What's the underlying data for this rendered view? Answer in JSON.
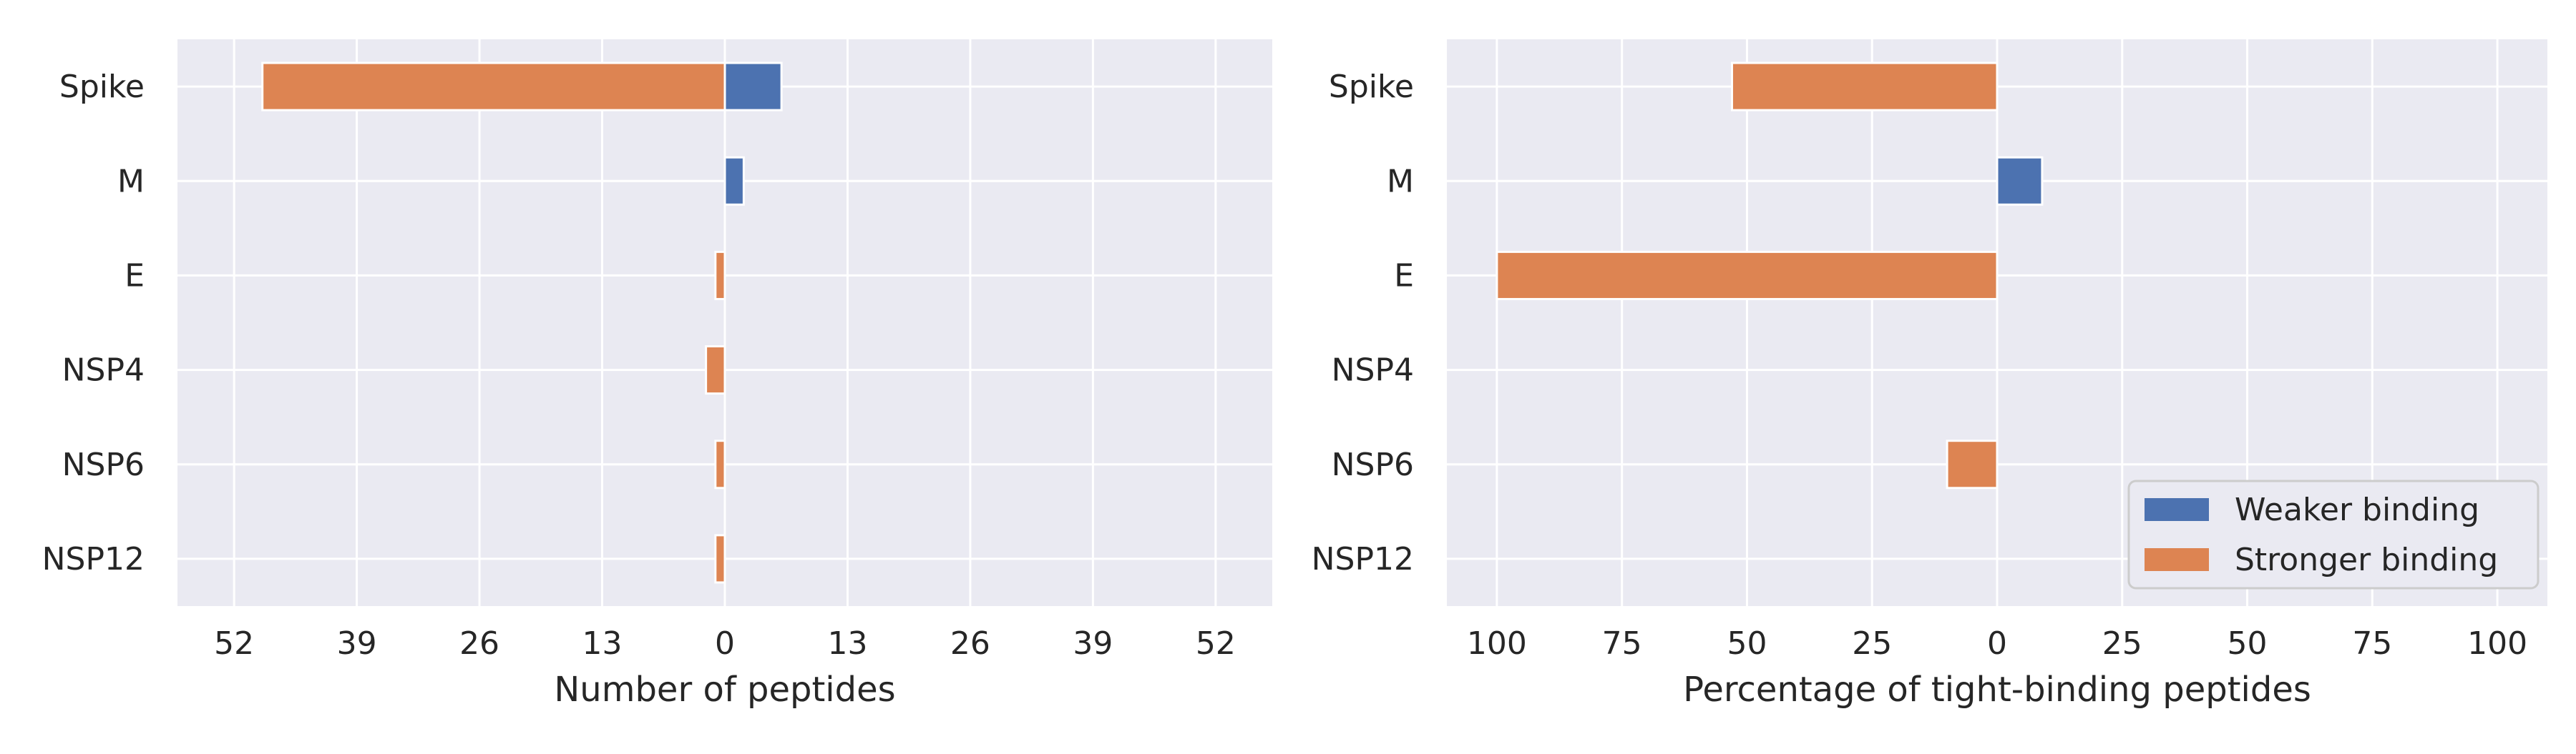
{
  "colors": {
    "weaker": "#4c72b0",
    "stronger": "#dd8452",
    "panel_bg": "#eaeaf2",
    "grid": "#ffffff",
    "legend_border": "#cccccc",
    "legend_bg": "#eaeaf2"
  },
  "chart_data": [
    {
      "type": "bar",
      "orientation": "horizontal-diverging",
      "categories": [
        "Spike",
        "M",
        "E",
        "NSP4",
        "NSP6",
        "NSP12"
      ],
      "xlabel": "Number of peptides",
      "xlim": [
        -58,
        58
      ],
      "xticks": [
        -52,
        -39,
        -26,
        -13,
        0,
        13,
        26,
        39,
        52
      ],
      "xtick_labels": [
        "52",
        "39",
        "26",
        "13",
        "0",
        "13",
        "26",
        "39",
        "52"
      ],
      "grid": true,
      "series": [
        {
          "name": "Weaker binding",
          "side": "positive",
          "values": [
            6,
            2,
            0,
            0,
            0,
            0
          ]
        },
        {
          "name": "Stronger binding",
          "side": "negative",
          "values": [
            49,
            0,
            1,
            2,
            1,
            1
          ]
        }
      ]
    },
    {
      "type": "bar",
      "orientation": "horizontal-diverging",
      "categories": [
        "Spike",
        "M",
        "E",
        "NSP4",
        "NSP6",
        "NSP12"
      ],
      "xlabel": "Percentage of tight-binding peptides",
      "xlim": [
        -110,
        110
      ],
      "xticks": [
        -100,
        -75,
        -50,
        -25,
        0,
        25,
        50,
        75,
        100
      ],
      "xtick_labels": [
        "100",
        "75",
        "50",
        "25",
        "0",
        "25",
        "50",
        "75",
        "100"
      ],
      "grid": true,
      "legend_position": "lower-right",
      "series": [
        {
          "name": "Weaker binding",
          "side": "positive",
          "values": [
            0,
            9,
            0,
            0,
            0,
            0
          ]
        },
        {
          "name": "Stronger binding",
          "side": "negative",
          "values": [
            53,
            0,
            100,
            0,
            10,
            0
          ]
        }
      ]
    }
  ]
}
